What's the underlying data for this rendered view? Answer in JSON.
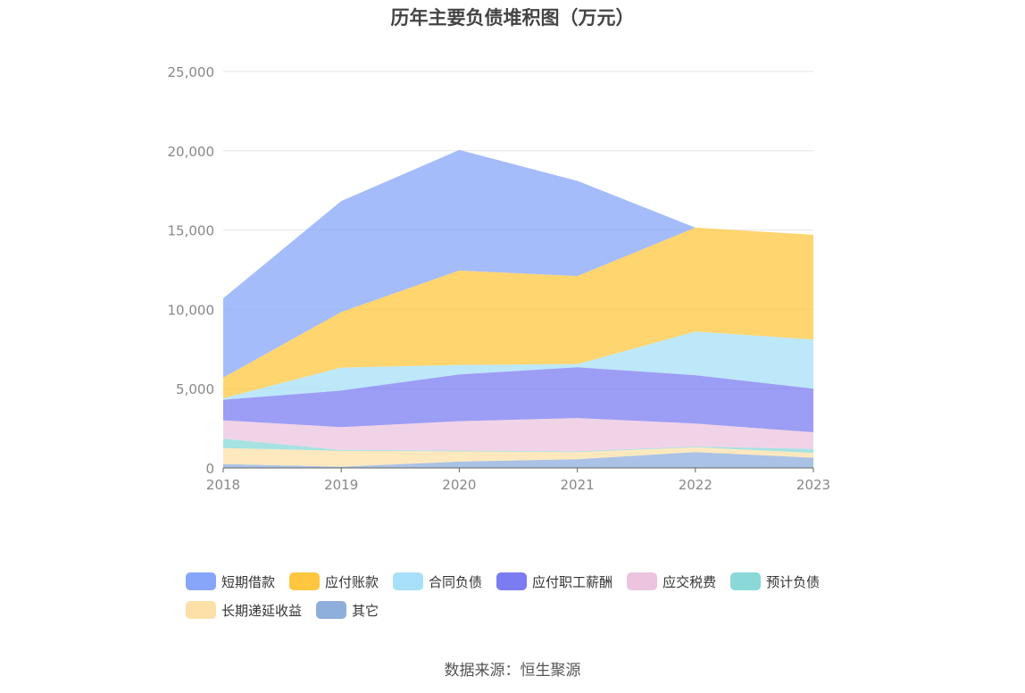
{
  "chart_data": {
    "type": "area",
    "stacked": true,
    "title": "历年主要负债堆积图（万元）",
    "x": [
      "2018",
      "2019",
      "2020",
      "2021",
      "2022",
      "2023"
    ],
    "yticks": [
      "0",
      "5,000",
      "10,000",
      "15,000",
      "20,000",
      "25,000"
    ],
    "ylim": [
      0,
      25000
    ],
    "grid": true,
    "legend_position": "bottom",
    "series": [
      {
        "name": "其它",
        "color": "#8eaedc",
        "values": [
          250,
          80,
          400,
          550,
          1000,
          650
        ]
      },
      {
        "name": "长期递延收益",
        "color": "#fde0a8",
        "values": [
          1000,
          1000,
          650,
          450,
          300,
          300
        ]
      },
      {
        "name": "预计负债",
        "color": "#8ad8d8",
        "values": [
          600,
          50,
          50,
          50,
          50,
          250
        ]
      },
      {
        "name": "应交税费",
        "color": "#ecc4df",
        "values": [
          1150,
          1450,
          1850,
          2100,
          1450,
          1050
        ]
      },
      {
        "name": "应付职工薪酬",
        "color": "#7b7cf2",
        "values": [
          1300,
          2300,
          2950,
          3200,
          3050,
          2750
        ]
      },
      {
        "name": "合同负债",
        "color": "#a7e0f8",
        "values": [
          100,
          1450,
          600,
          200,
          2750,
          3100
        ]
      },
      {
        "name": "应付账款",
        "color": "#ffc73f",
        "values": [
          1300,
          3500,
          5950,
          5550,
          6550,
          6600
        ]
      },
      {
        "name": "短期借款",
        "color": "#87a6f9",
        "values": [
          5000,
          7000,
          7600,
          6000,
          0,
          0
        ]
      }
    ],
    "legend_order": [
      "短期借款",
      "应付账款",
      "合同负债",
      "应付职工薪酬",
      "应交税费",
      "预计负债",
      "长期递延收益",
      "其它"
    ]
  },
  "source": "数据来源：恒生聚源"
}
